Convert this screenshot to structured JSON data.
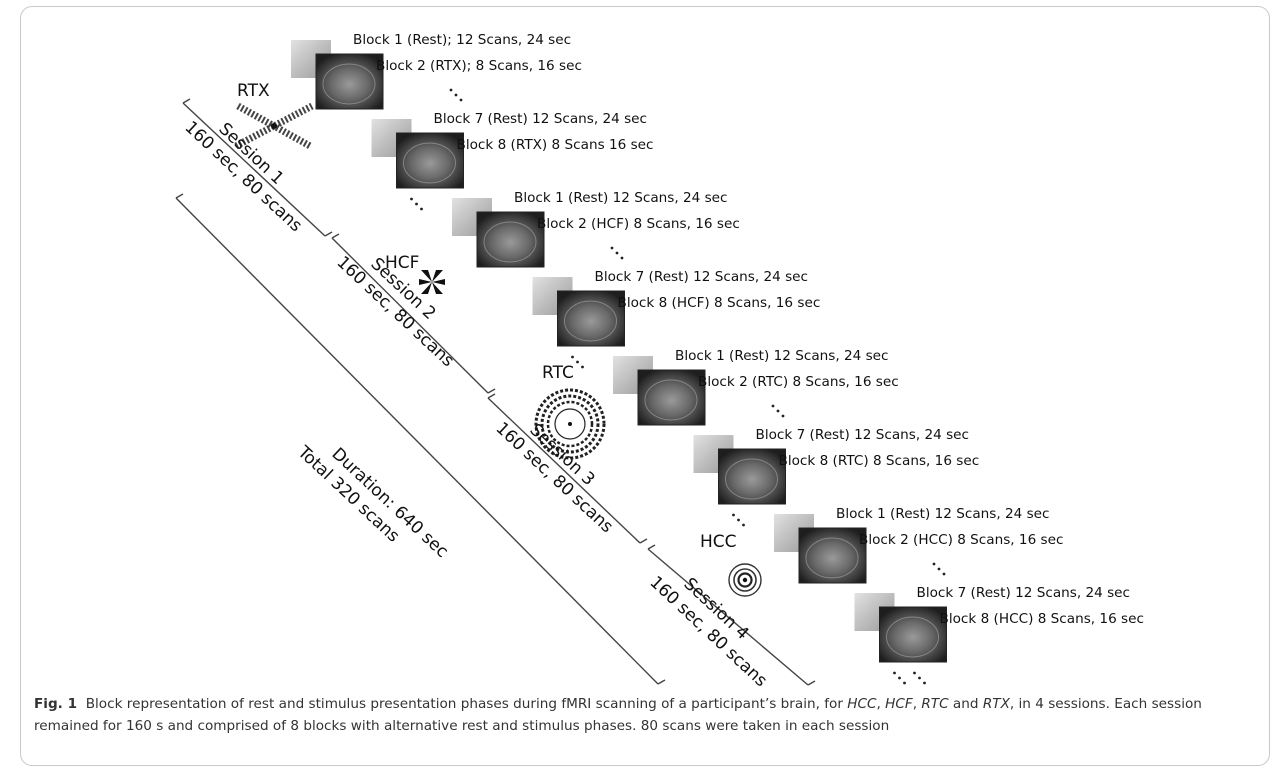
{
  "blocks": [
    {
      "rest_label": "Block 1 (Rest); 12 Scans, 24 sec",
      "stim_label": "Block 2 (RTX); 8 Scans, 16 sec"
    },
    {
      "rest_label": "Block 7 (Rest) 12 Scans,  24 sec",
      "stim_label": "Block 8 (RTX) 8 Scans  16 sec"
    },
    {
      "rest_label": "Block 1 (Rest) 12 Scans, 24 sec",
      "stim_label": "Block 2 (HCF) 8 Scans, 16 sec"
    },
    {
      "rest_label": "Block 7 (Rest) 12 Scans,  24 sec",
      "stim_label": "Block 8 (HCF) 8 Scans,  16 sec"
    },
    {
      "rest_label": "Block 1 (Rest) 12 Scans, 24 sec",
      "stim_label": "Block 2 (RTC) 8 Scans, 16 sec"
    },
    {
      "rest_label": "Block 7 (Rest) 12 Scans,  24 sec",
      "stim_label": "Block 8 (RTC) 8 Scans, 16 sec"
    },
    {
      "rest_label": "Block 1 (Rest) 12 Scans, 24 sec",
      "stim_label": "Block 2 (HCC) 8 Scans, 16 sec"
    },
    {
      "rest_label": "Block 7 (Rest) 12 Scans, 24 sec",
      "stim_label": "Block 8 (HCC) 8 Scans, 16 sec"
    }
  ],
  "stimuli": [
    {
      "label": "RTX",
      "icon": "checkerboard-x-icon"
    },
    {
      "label": "HCF",
      "icon": "checkerboard-fan-icon"
    },
    {
      "label": "RTC",
      "icon": "radial-checkerboard-circle-icon"
    },
    {
      "label": "HCC",
      "icon": "concentric-circles-icon"
    }
  ],
  "sessions": [
    {
      "name": "Session 1",
      "detail": "160 sec, 80 scans"
    },
    {
      "name": "Session 2",
      "detail": "160 sec, 80 scans"
    },
    {
      "name": "Session 3",
      "detail": "160 sec, 80 scans"
    },
    {
      "name": "Session 4",
      "detail": "160 sec, 80 scans"
    }
  ],
  "total": {
    "duration": "Duration: 640 sec",
    "scans": "Total 320 scans"
  },
  "caption": {
    "label": "Fig. 1",
    "text_1": "Block representation of rest and stimulus presentation phases during fMRI scanning of a participant’s brain, for ",
    "hcc": "HCC",
    "sep_1": ", ",
    "hcf": "HCF",
    "sep_2": ", ",
    "rtc": "RTC",
    "sep_3": " and ",
    "rtx": "RTX",
    "text_2": ", in 4 sessions. Each session remained for 160 s and comprised of 8 blocks with alternative rest and stimulus phases. 80 scans were taken in each session"
  }
}
